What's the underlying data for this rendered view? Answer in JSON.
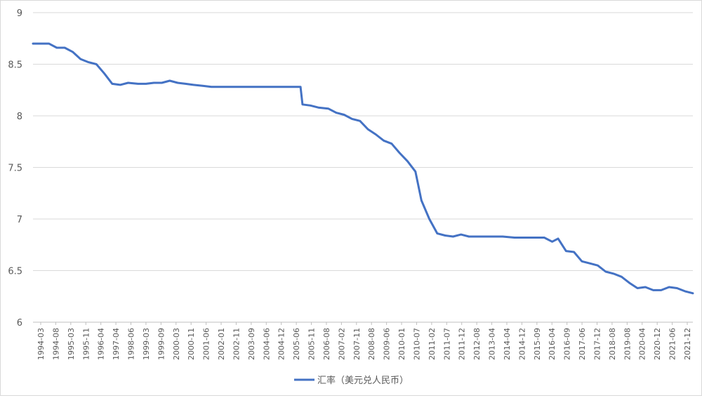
{
  "chart_data": {
    "type": "line",
    "title": "",
    "xlabel": "",
    "ylabel": "",
    "ylim": [
      6,
      9
    ],
    "yticks": [
      6,
      6.5,
      7,
      7.5,
      8,
      8.5,
      9
    ],
    "ytick_labels": [
      "6",
      "6.5",
      "7",
      "7.5",
      "8",
      "8.5",
      "9"
    ],
    "grid": "horizontal",
    "legend_position": "bottom",
    "colors": {
      "series": "#4472c4",
      "grid": "#d9d9d9",
      "axis": "#bfbfbf",
      "text": "#595959"
    },
    "x_tick_labels": [
      "1994-03",
      "1994-08",
      "1995-03",
      "1995-11",
      "1996-04",
      "1997-04",
      "1998-06",
      "1999-03",
      "1999-09",
      "2000-03",
      "2000-11",
      "2001-06",
      "2002-01",
      "2002-11",
      "2003-09",
      "2004-06",
      "2004-12",
      "2005-06",
      "2005-11",
      "2006-08",
      "2007-02",
      "2007-11",
      "2008-08",
      "2009-06",
      "2010-01",
      "2010-07",
      "2011-02",
      "2011-07",
      "2011-12",
      "2012-08",
      "2013-04",
      "2014-04",
      "2014-12",
      "2015-09",
      "2016-04",
      "2016-09",
      "2017-06",
      "2017-12",
      "2018-08",
      "2019-08",
      "2020-04",
      "2020-12",
      "2021-06",
      "2021-12"
    ],
    "series": [
      {
        "name": "汇率（美元兑人民币）",
        "points": [
          [
            "1994-03",
            8.7
          ],
          [
            "1994-07",
            8.7
          ],
          [
            "1994-11",
            8.7
          ],
          [
            "1995-03",
            8.66
          ],
          [
            "1995-07",
            8.66
          ],
          [
            "1995-11",
            8.62
          ],
          [
            "1996-03",
            8.55
          ],
          [
            "1996-07",
            8.52
          ],
          [
            "1996-11",
            8.5
          ],
          [
            "1997-03",
            8.41
          ],
          [
            "1997-07",
            8.31
          ],
          [
            "1997-11",
            8.3
          ],
          [
            "1998-03",
            8.32
          ],
          [
            "1998-08",
            8.31
          ],
          [
            "1998-12",
            8.31
          ],
          [
            "1999-04",
            8.32
          ],
          [
            "1999-08",
            8.32
          ],
          [
            "1999-12",
            8.34
          ],
          [
            "2000-04",
            8.32
          ],
          [
            "2000-08",
            8.31
          ],
          [
            "2000-12",
            8.3
          ],
          [
            "2001-05",
            8.29
          ],
          [
            "2001-09",
            8.28
          ],
          [
            "2002-01",
            8.28
          ],
          [
            "2002-05",
            8.28
          ],
          [
            "2002-09",
            8.28
          ],
          [
            "2003-01",
            8.28
          ],
          [
            "2003-05",
            8.28
          ],
          [
            "2003-09",
            8.28
          ],
          [
            "2004-01",
            8.28
          ],
          [
            "2004-06",
            8.28
          ],
          [
            "2004-12",
            8.28
          ],
          [
            "2005-06",
            8.28
          ],
          [
            "2005-07",
            8.11
          ],
          [
            "2005-11",
            8.1
          ],
          [
            "2006-03",
            8.08
          ],
          [
            "2006-08",
            8.07
          ],
          [
            "2006-12",
            8.03
          ],
          [
            "2007-04",
            8.01
          ],
          [
            "2007-08",
            7.97
          ],
          [
            "2007-12",
            7.95
          ],
          [
            "2008-04",
            7.87
          ],
          [
            "2008-08",
            7.82
          ],
          [
            "2008-12",
            7.76
          ],
          [
            "2009-04",
            7.73
          ],
          [
            "2009-08",
            7.64
          ],
          [
            "2009-12",
            7.56
          ],
          [
            "2010-04",
            7.46
          ],
          [
            "2010-07",
            7.18
          ],
          [
            "2010-11",
            7.0
          ],
          [
            "2011-03",
            6.86
          ],
          [
            "2011-07",
            6.84
          ],
          [
            "2011-11",
            6.83
          ],
          [
            "2012-03",
            6.85
          ],
          [
            "2012-07",
            6.83
          ],
          [
            "2012-12",
            6.83
          ],
          [
            "2013-06",
            6.83
          ],
          [
            "2013-12",
            6.83
          ],
          [
            "2014-06",
            6.82
          ],
          [
            "2014-12",
            6.82
          ],
          [
            "2015-06",
            6.82
          ],
          [
            "2015-09",
            6.82
          ],
          [
            "2016-01",
            6.78
          ],
          [
            "2016-04",
            6.81
          ],
          [
            "2016-08",
            6.69
          ],
          [
            "2016-12",
            6.68
          ],
          [
            "2017-04",
            6.59
          ],
          [
            "2017-08",
            6.57
          ],
          [
            "2017-12",
            6.55
          ],
          [
            "2018-04",
            6.49
          ],
          [
            "2018-08",
            6.47
          ],
          [
            "2018-12",
            6.44
          ],
          [
            "2019-04",
            6.38
          ],
          [
            "2019-08",
            6.33
          ],
          [
            "2019-12",
            6.34
          ],
          [
            "2020-04",
            6.31
          ],
          [
            "2020-08",
            6.31
          ],
          [
            "2020-12",
            6.34
          ],
          [
            "2021-04",
            6.33
          ],
          [
            "2021-08",
            6.3
          ],
          [
            "2021-12",
            6.28
          ]
        ]
      }
    ],
    "legend": [
      {
        "label": "汇率（美元兑人民币）",
        "color": "#4472c4"
      }
    ]
  }
}
